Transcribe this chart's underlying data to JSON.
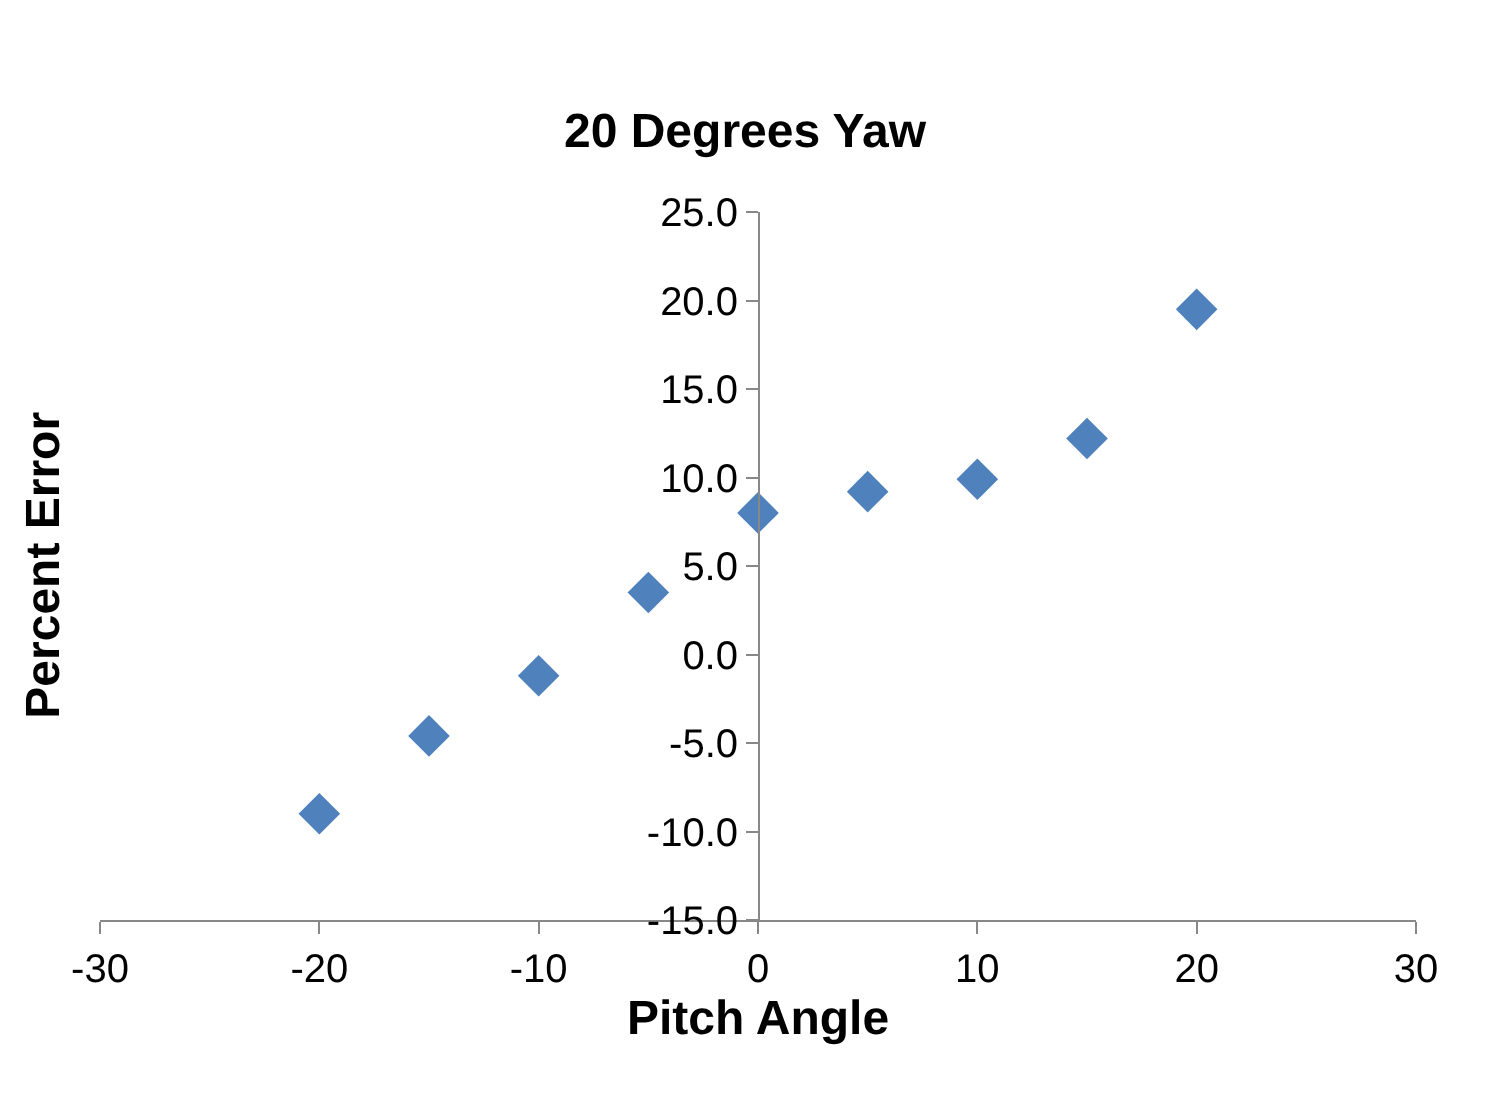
{
  "chart_data": {
    "type": "scatter",
    "title": "20 Degrees Yaw",
    "xlabel": "Pitch Angle",
    "ylabel": "Percent Error",
    "x": [
      -20,
      -15,
      -10,
      -5,
      0,
      5,
      10,
      15,
      20
    ],
    "series": [
      {
        "color": "#4f81bd",
        "values": [
          -9.0,
          -4.6,
          -1.2,
          3.5,
          8.0,
          9.2,
          9.9,
          12.2,
          19.5
        ]
      }
    ],
    "xlim": [
      -30,
      30
    ],
    "xticks": [
      -30,
      -20,
      -10,
      0,
      10,
      20,
      30
    ],
    "ylim": [
      -15,
      25
    ],
    "yticks": [
      {
        "value": -15,
        "label": "-15.0"
      },
      {
        "value": -10,
        "label": "-10.0"
      },
      {
        "value": -5,
        "label": "-5.0"
      },
      {
        "value": 0,
        "label": "0.0"
      },
      {
        "value": 5,
        "label": "5.0"
      },
      {
        "value": 10,
        "label": "10.0"
      },
      {
        "value": 15,
        "label": "15.0"
      },
      {
        "value": 20,
        "label": "20.0"
      },
      {
        "value": 25,
        "label": "25.0"
      }
    ],
    "grid": false,
    "legend": false,
    "marker": "diamond"
  }
}
